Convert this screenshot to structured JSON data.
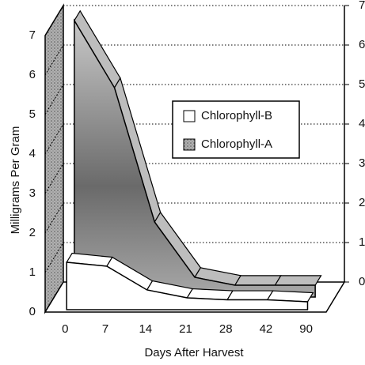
{
  "chart_data": {
    "type": "area3d",
    "categories": [
      "0",
      "7",
      "14",
      "21",
      "28",
      "42",
      "90"
    ],
    "series": [
      {
        "name": "Chlorophyll-B",
        "color": "#ffffff",
        "values": [
          1.2,
          1.1,
          0.5,
          0.3,
          0.25,
          0.25,
          0.2
        ]
      },
      {
        "name": "Chlorophyll-A",
        "color": "#9a9a9a",
        "values": [
          7.0,
          5.3,
          1.9,
          0.5,
          0.3,
          0.3,
          0.3
        ]
      }
    ],
    "ylim": [
      0,
      7
    ],
    "yticks": [
      0,
      1,
      2,
      3,
      4,
      5,
      6,
      7
    ],
    "ylabel": "Milligrams Per Gram",
    "xlabel": "Days After Harvest",
    "grid": true,
    "legend": "upper right"
  }
}
